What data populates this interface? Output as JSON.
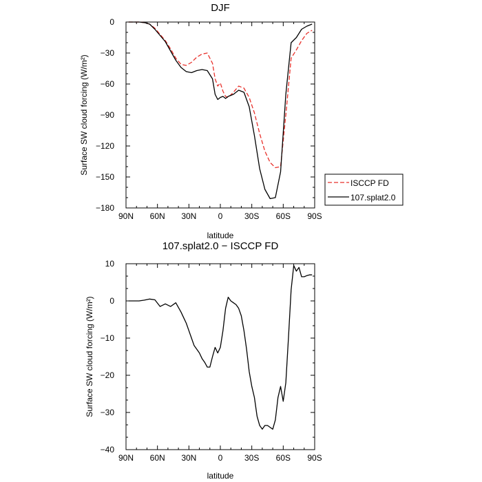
{
  "chart_data": [
    {
      "type": "line",
      "title": "DJF",
      "xlabel": "latitude",
      "ylabel": "Surface SW cloud forcing (W/m²)",
      "xlim": [
        90,
        -90
      ],
      "ylim": [
        -180,
        0
      ],
      "xticks": [
        90,
        60,
        30,
        0,
        -30,
        -60,
        -90
      ],
      "xticklabels": [
        "90N",
        "60N",
        "30N",
        "0",
        "30S",
        "60S",
        "90S"
      ],
      "yticks": [
        0,
        -30,
        -60,
        -90,
        -120,
        -150,
        -180
      ],
      "yticklabels": [
        "0",
        "−30",
        "−60",
        "−90",
        "−120",
        "−150",
        "−180"
      ],
      "legend_position": "outside-right",
      "series": [
        {
          "name": "ISCCP FD",
          "color": "#e8302a",
          "dash": "dashed",
          "x": [
            87.5,
            82.5,
            77.5,
            72.5,
            67.5,
            62.5,
            57.5,
            52.5,
            47.5,
            42.5,
            37.5,
            32.5,
            27.5,
            22.5,
            17.5,
            12.5,
            7.5,
            5,
            2.5,
            0,
            -2.5,
            -5,
            -7.5,
            -12.5,
            -17.5,
            -22.5,
            -27.5,
            -32.5,
            -37.5,
            -42.5,
            -47.5,
            -52.5,
            -57.5,
            -62.5,
            -67.5,
            -72.5,
            -77.5,
            -82.5,
            -87.5
          ],
          "values": [
            0,
            0,
            0,
            -0.5,
            -2,
            -6,
            -12,
            -18,
            -26,
            -35,
            -41,
            -42,
            -39,
            -34,
            -31,
            -30,
            -40,
            -55,
            -62,
            -59,
            -67,
            -72,
            -73,
            -68,
            -62,
            -64,
            -73,
            -88,
            -108,
            -125,
            -136,
            -141,
            -140,
            -90,
            -35,
            -27,
            -18,
            -11,
            -8
          ]
        },
        {
          "name": "107.splat2.0",
          "color": "#000000",
          "dash": "solid",
          "x": [
            87.5,
            82.5,
            77.5,
            72.5,
            67.5,
            62.5,
            57.5,
            52.5,
            47.5,
            42.5,
            37.5,
            32.5,
            27.5,
            22.5,
            17.5,
            12.5,
            7.5,
            5,
            2.5,
            0,
            -2.5,
            -5,
            -7.5,
            -12.5,
            -17.5,
            -22.5,
            -27.5,
            -32.5,
            -37.5,
            -42.5,
            -47.5,
            -52.5,
            -57.5,
            -62.5,
            -67.5,
            -72.5,
            -77.5,
            -82.5,
            -87.5
          ],
          "values": [
            0,
            0,
            0,
            -0.5,
            -2,
            -7,
            -13,
            -19,
            -28,
            -37,
            -44,
            -48,
            -49,
            -47,
            -46,
            -47,
            -55,
            -70,
            -75,
            -73,
            -72,
            -74,
            -72,
            -70,
            -66,
            -68,
            -82,
            -110,
            -142,
            -162,
            -171,
            -170,
            -145,
            -70,
            -20,
            -15,
            -7,
            -4,
            -2
          ]
        }
      ]
    },
    {
      "type": "line",
      "title": "107.splat2.0 − ISCCP FD",
      "xlabel": "latitude",
      "ylabel": "Surface SW cloud forcing (W/m²)",
      "xlim": [
        90,
        -90
      ],
      "ylim": [
        -40,
        10
      ],
      "xticks": [
        90,
        60,
        30,
        0,
        -30,
        -60,
        -90
      ],
      "xticklabels": [
        "90N",
        "60N",
        "30N",
        "0",
        "30S",
        "60S",
        "90S"
      ],
      "yticks": [
        10,
        0,
        -10,
        -20,
        -30,
        -40
      ],
      "yticklabels": [
        "10",
        "0",
        "−10",
        "−20",
        "−30",
        "−40"
      ],
      "series": [
        {
          "color": "#000000",
          "dash": "solid",
          "x": [
            87.5,
            82.5,
            77.5,
            72.5,
            67.5,
            62.5,
            57.5,
            52.5,
            47.5,
            42.5,
            37.5,
            35,
            32.5,
            30,
            27.5,
            25,
            22.5,
            20,
            17.5,
            15,
            12.5,
            10,
            7.5,
            5,
            2.5,
            0,
            -2.5,
            -5,
            -7.5,
            -10,
            -12.5,
            -15,
            -17.5,
            -20,
            -22.5,
            -25,
            -27.5,
            -30,
            -32.5,
            -35,
            -37.5,
            -40,
            -42.5,
            -45,
            -47.5,
            -50,
            -52.5,
            -55,
            -57.5,
            -60,
            -62.5,
            -65,
            -67.5,
            -70,
            -72.5,
            -75,
            -77.5,
            -80,
            -82.5,
            -85,
            -87.5
          ],
          "values": [
            0,
            0,
            0,
            0.2,
            0.5,
            0.3,
            -1.5,
            -0.8,
            -1.5,
            -0.5,
            -3,
            -4.5,
            -6,
            -8,
            -10,
            -12,
            -13,
            -14,
            -15.5,
            -16.5,
            -17.8,
            -17.8,
            -15,
            -12.5,
            -14,
            -12.5,
            -8,
            -2,
            1,
            0,
            -0.5,
            -1,
            -2,
            -4,
            -8,
            -13,
            -19,
            -23,
            -26,
            -31,
            -33.5,
            -34.5,
            -33.5,
            -33.5,
            -34,
            -34.5,
            -32,
            -26,
            -23,
            -27,
            -22,
            -10,
            3,
            9.5,
            8,
            9,
            6.5,
            6.5,
            6.8,
            7,
            7
          ]
        }
      ]
    }
  ]
}
